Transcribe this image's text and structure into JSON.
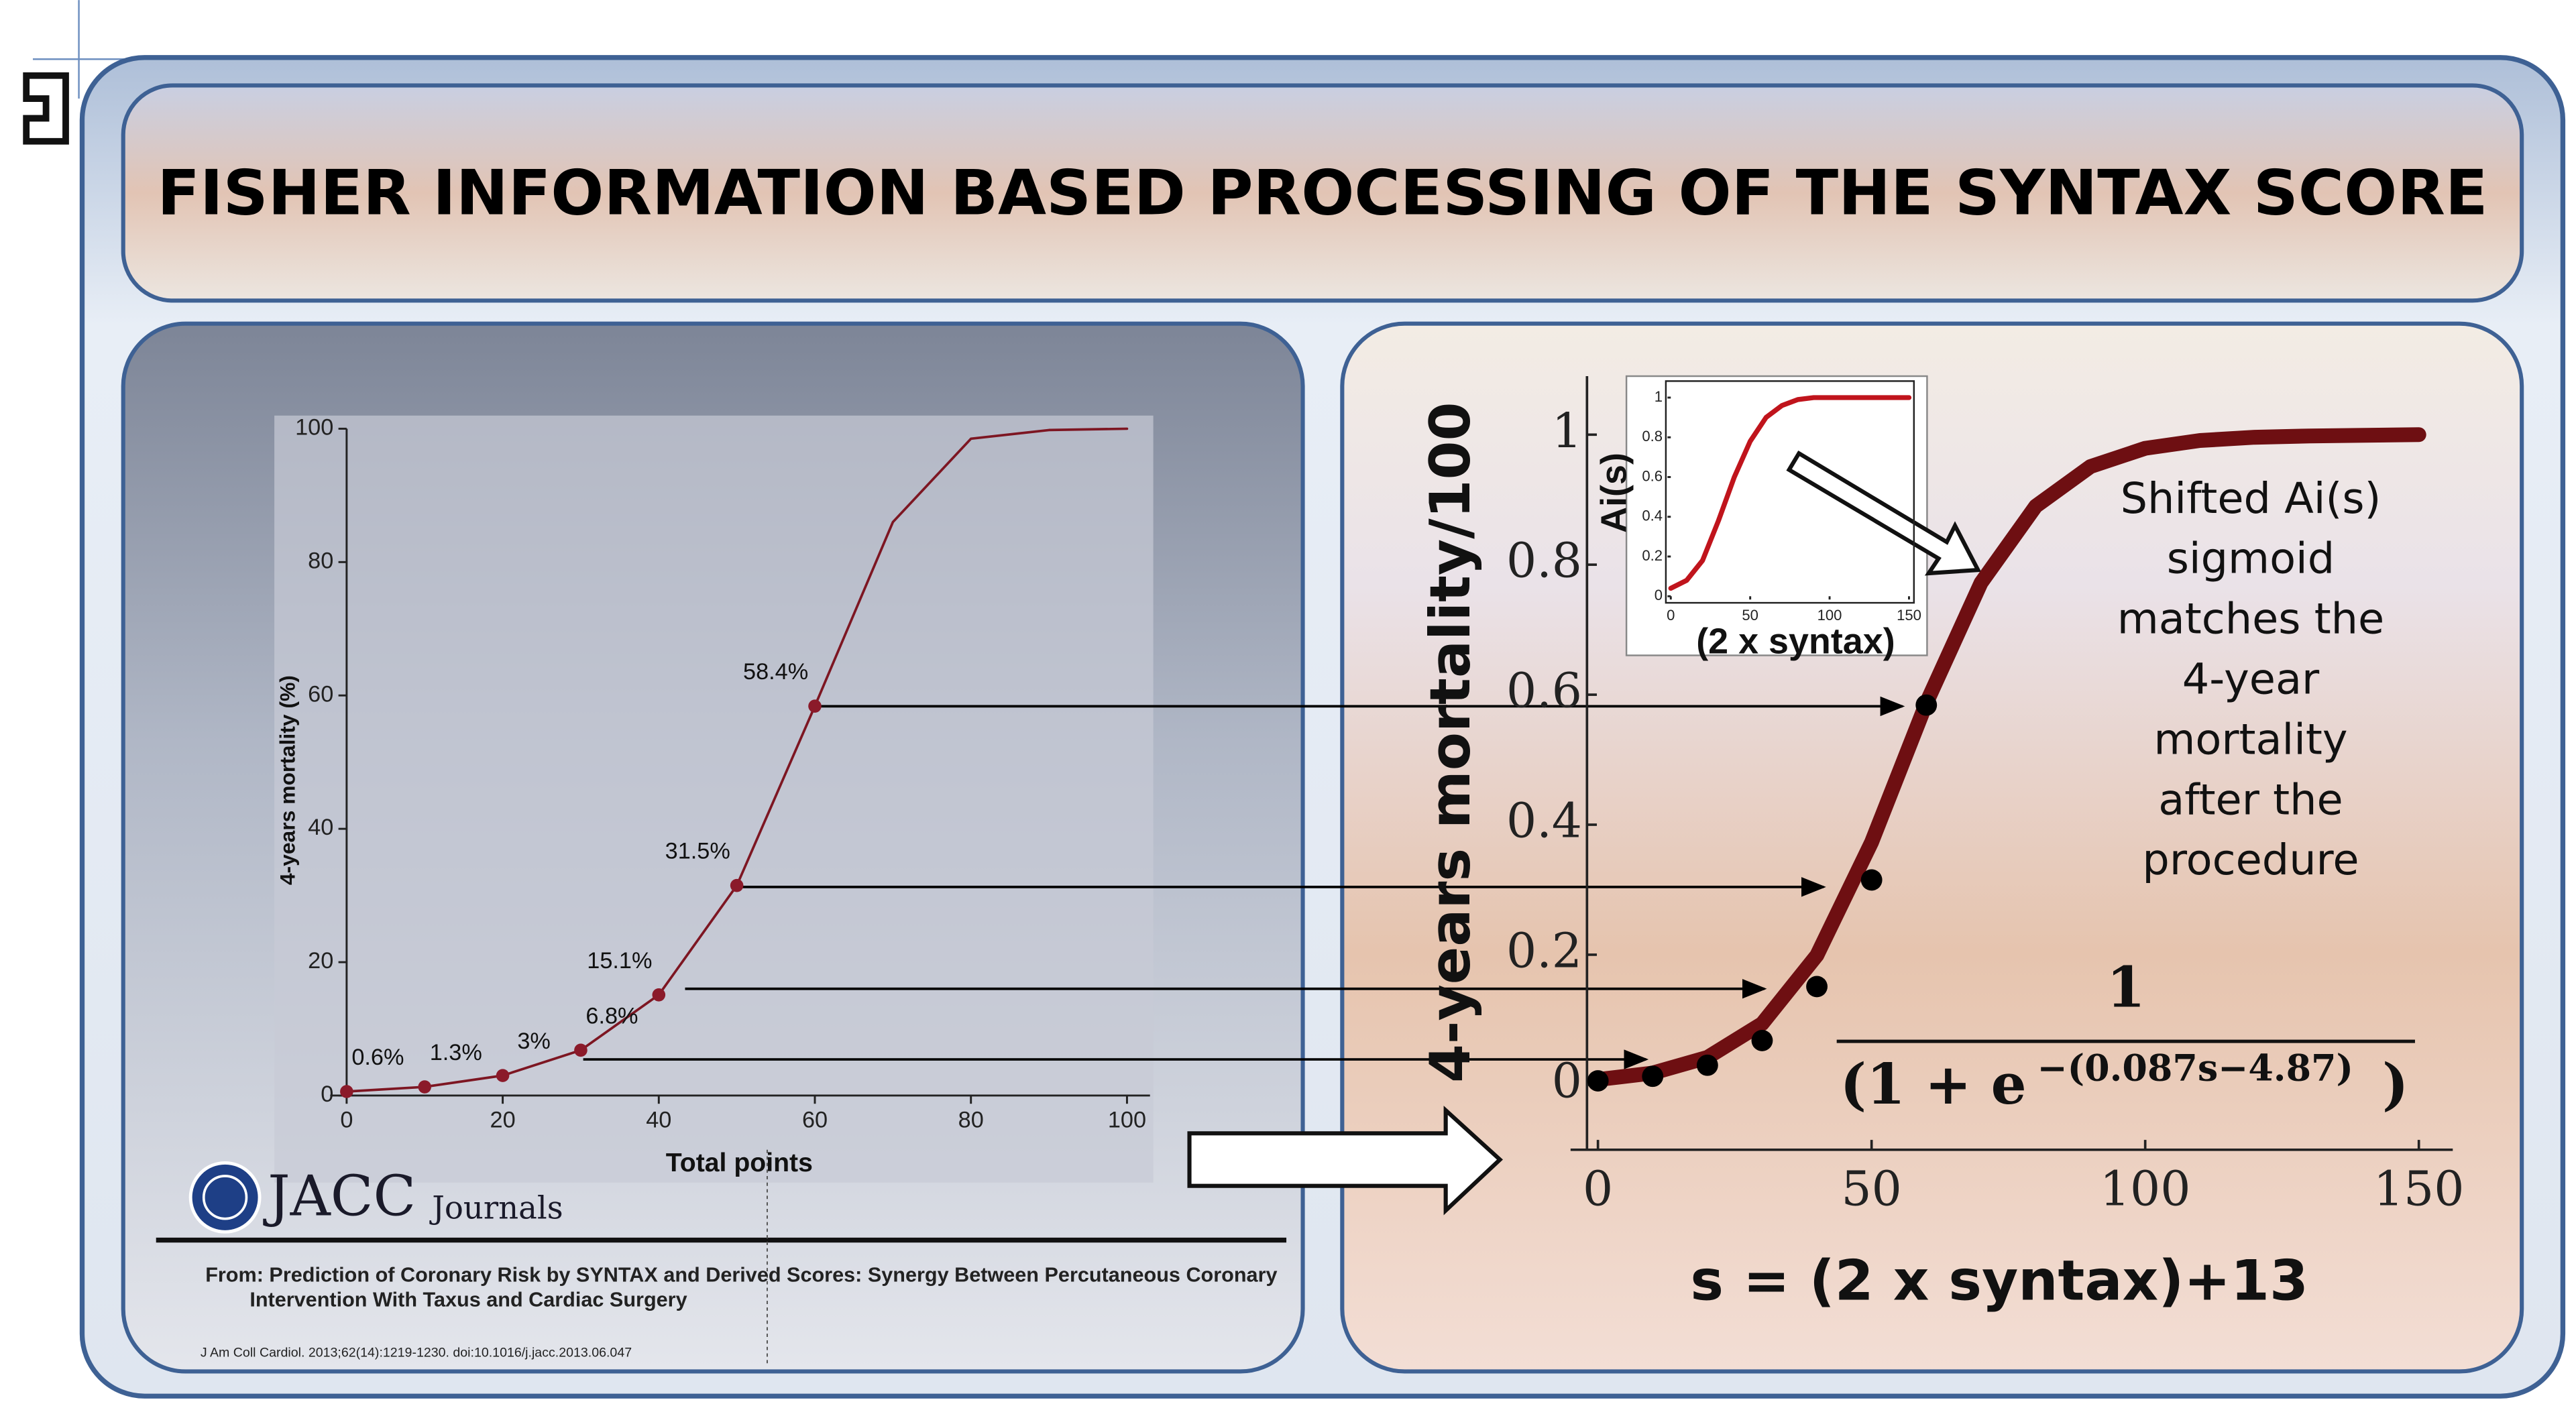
{
  "title": "FISHER INFORMATION BASED PROCESSING OF THE SYNTAX SCORE",
  "chart_data": [
    {
      "type": "line",
      "xlabel": "Total points",
      "ylabel": "4-years mortality (%)",
      "xlim": [
        0,
        100
      ],
      "ylim": [
        0,
        100
      ],
      "xticks": [
        0,
        20,
        40,
        60,
        80,
        100
      ],
      "yticks": [
        0,
        20,
        40,
        60,
        80,
        100
      ],
      "series": [
        {
          "color": "#7d1622",
          "markers": false,
          "line_width": 1.5,
          "x": [
            0,
            10,
            20,
            30,
            40,
            50,
            60,
            70,
            80,
            90,
            100
          ],
          "values": [
            0.6,
            1.3,
            3,
            6.8,
            15.1,
            31.5,
            58.4,
            86,
            98.5,
            99.8,
            100
          ]
        },
        {
          "color": "#8b1a2a",
          "markers": true,
          "x": [
            0,
            10,
            20,
            30,
            40,
            50,
            60
          ],
          "values": [
            0.6,
            1.3,
            3,
            6.8,
            15.1,
            31.5,
            58.4
          ],
          "value_labels": [
            "0.6%",
            "1.3%",
            "3%",
            "6.8%",
            "15.1%",
            "31.5%",
            "58.4%"
          ]
        }
      ]
    },
    {
      "type": "line",
      "xlabel": "s = (2 x syntax)+13",
      "ylabel": "4-years mortality/100",
      "xlim": [
        -2,
        152
      ],
      "ylim": [
        -0.1,
        1.09
      ],
      "xticks": [
        0,
        50,
        100,
        150
      ],
      "yticks": [
        0,
        0.2,
        0.4,
        0.6,
        0.8,
        1
      ],
      "series": [
        {
          "color": "#6e0f12",
          "markers": false,
          "line_width": 9,
          "x": [
            0,
            10,
            20,
            30,
            40,
            50,
            60,
            70,
            80,
            90,
            100,
            110,
            120,
            130,
            140,
            150
          ],
          "values": [
            0.008,
            0.018,
            0.042,
            0.094,
            0.199,
            0.373,
            0.587,
            0.772,
            0.89,
            0.951,
            0.979,
            0.991,
            0.996,
            0.998,
            0.999,
            1
          ]
        },
        {
          "color": "#000000",
          "markers": true,
          "x": [
            0,
            10,
            20,
            30,
            40,
            50,
            60
          ],
          "values": [
            0.006,
            0.013,
            0.03,
            0.068,
            0.151,
            0.315,
            0.584
          ]
        }
      ],
      "annotation": [
        "Shifted Ai(s)",
        "sigmoid",
        "matches the",
        "4-year",
        "mortality",
        "after the",
        "procedure"
      ],
      "formula": {
        "numerator": "1",
        "denominator_open": "(1 + e",
        "exponent": "−(0.087s−4.87)",
        "denominator_close": ")"
      }
    },
    {
      "type": "line",
      "xlabel": "(2 x syntax)",
      "ylabel": "Ai(s)",
      "xlim": [
        0,
        150
      ],
      "ylim": [
        0,
        1.05
      ],
      "xticks": [
        0,
        50,
        100,
        150
      ],
      "yticks": [
        0,
        0.2,
        0.4,
        0.6,
        0.8,
        1
      ],
      "series": [
        {
          "color": "#c0141c",
          "markers": false,
          "line_width": 3,
          "x": [
            0,
            10,
            20,
            30,
            40,
            50,
            60,
            70,
            80,
            90,
            100,
            110,
            120,
            130,
            140,
            150
          ],
          "values": [
            0.04,
            0.08,
            0.18,
            0.38,
            0.6,
            0.78,
            0.9,
            0.96,
            0.99,
            1,
            1,
            1,
            1,
            1,
            1,
            1
          ]
        }
      ]
    }
  ],
  "source": {
    "logo": "JACC",
    "logo_sub": "Journals",
    "caption_lines": [
      "From: Prediction of Coronary Risk by SYNTAX and Derived Scores: Synergy Between Percutaneous Coronary",
      "Intervention With Taxus and Cardiac Surgery"
    ],
    "citation": "J Am Coll Cardiol. 2013;62(14):1219-1230. doi:10.1016/j.jacc.2013.06.047"
  }
}
